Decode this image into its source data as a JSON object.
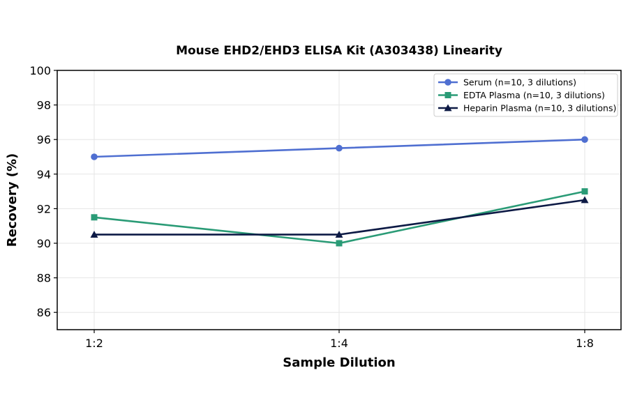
{
  "chart_data": {
    "type": "line",
    "title": "Mouse EHD2/EHD3 ELISA Kit (A303438) Linearity",
    "xlabel": "Sample Dilution",
    "ylabel": "Recovery (%)",
    "categories": [
      "1:2",
      "1:4",
      "1:8"
    ],
    "ylim": [
      85,
      100
    ],
    "yticks": [
      86,
      88,
      90,
      92,
      94,
      96,
      98,
      100
    ],
    "grid": true,
    "legend_position": "top-right",
    "series": [
      {
        "name": "Serum (n=10, 3 dilutions)",
        "values": [
          95.0,
          95.5,
          96.0
        ],
        "color": "#4f6fd1",
        "marker": "circle"
      },
      {
        "name": "EDTA Plasma (n=10, 3 dilutions)",
        "values": [
          91.5,
          90.0,
          93.0
        ],
        "color": "#2a9b76",
        "marker": "square"
      },
      {
        "name": "Heparin Plasma (n=10, 3 dilutions)",
        "values": [
          90.5,
          90.5,
          92.5
        ],
        "color": "#0d1a45",
        "marker": "triangle"
      }
    ]
  }
}
